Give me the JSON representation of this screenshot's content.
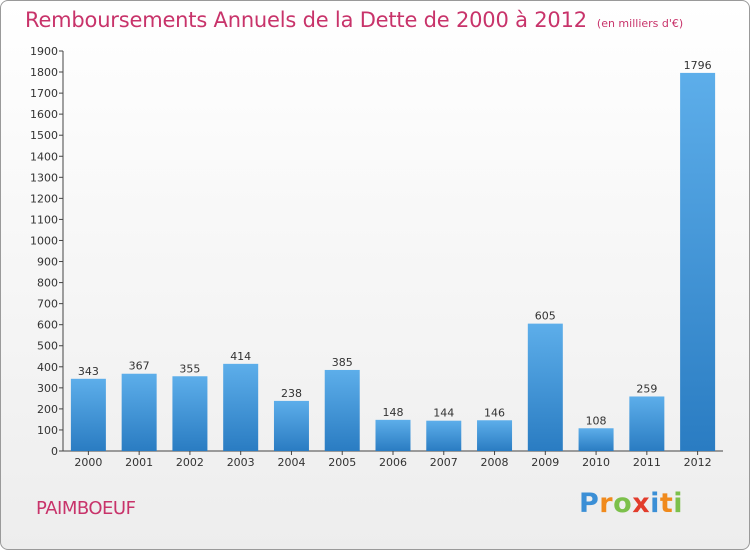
{
  "header": {
    "title": "Remboursements Annuels de la Dette de 2000 à 2012",
    "unit": "(en milliers d'€)"
  },
  "footer": {
    "commune": "PAIMBOEUF",
    "brand_letters": [
      {
        "char": "P",
        "color": "#3b8fd6"
      },
      {
        "char": "r",
        "color": "#f08a1c"
      },
      {
        "char": "o",
        "color": "#7cc04b"
      },
      {
        "char": "x",
        "color": "#e23c2c"
      },
      {
        "char": "i",
        "color": "#3b8fd6"
      },
      {
        "char": "t",
        "color": "#f08a1c"
      },
      {
        "char": "i",
        "color": "#7cc04b"
      }
    ]
  },
  "colors": {
    "bar_top": "#5daeea",
    "bar_bottom": "#2a7cc2",
    "title": "#c8336a"
  },
  "chart_data": {
    "type": "bar",
    "categories": [
      "2000",
      "2001",
      "2002",
      "2003",
      "2004",
      "2005",
      "2006",
      "2007",
      "2008",
      "2009",
      "2010",
      "2011",
      "2012"
    ],
    "values": [
      343,
      367,
      355,
      414,
      238,
      385,
      148,
      144,
      146,
      605,
      108,
      259,
      1796
    ],
    "ylim": [
      0,
      1900
    ],
    "yticks": [
      0,
      100,
      200,
      300,
      400,
      500,
      600,
      700,
      800,
      900,
      1000,
      1100,
      1200,
      1300,
      1400,
      1500,
      1600,
      1700,
      1800,
      1900
    ],
    "grid": false,
    "title": "Remboursements Annuels de la Dette de 2000 à 2012",
    "xlabel": "",
    "ylabel": ""
  }
}
